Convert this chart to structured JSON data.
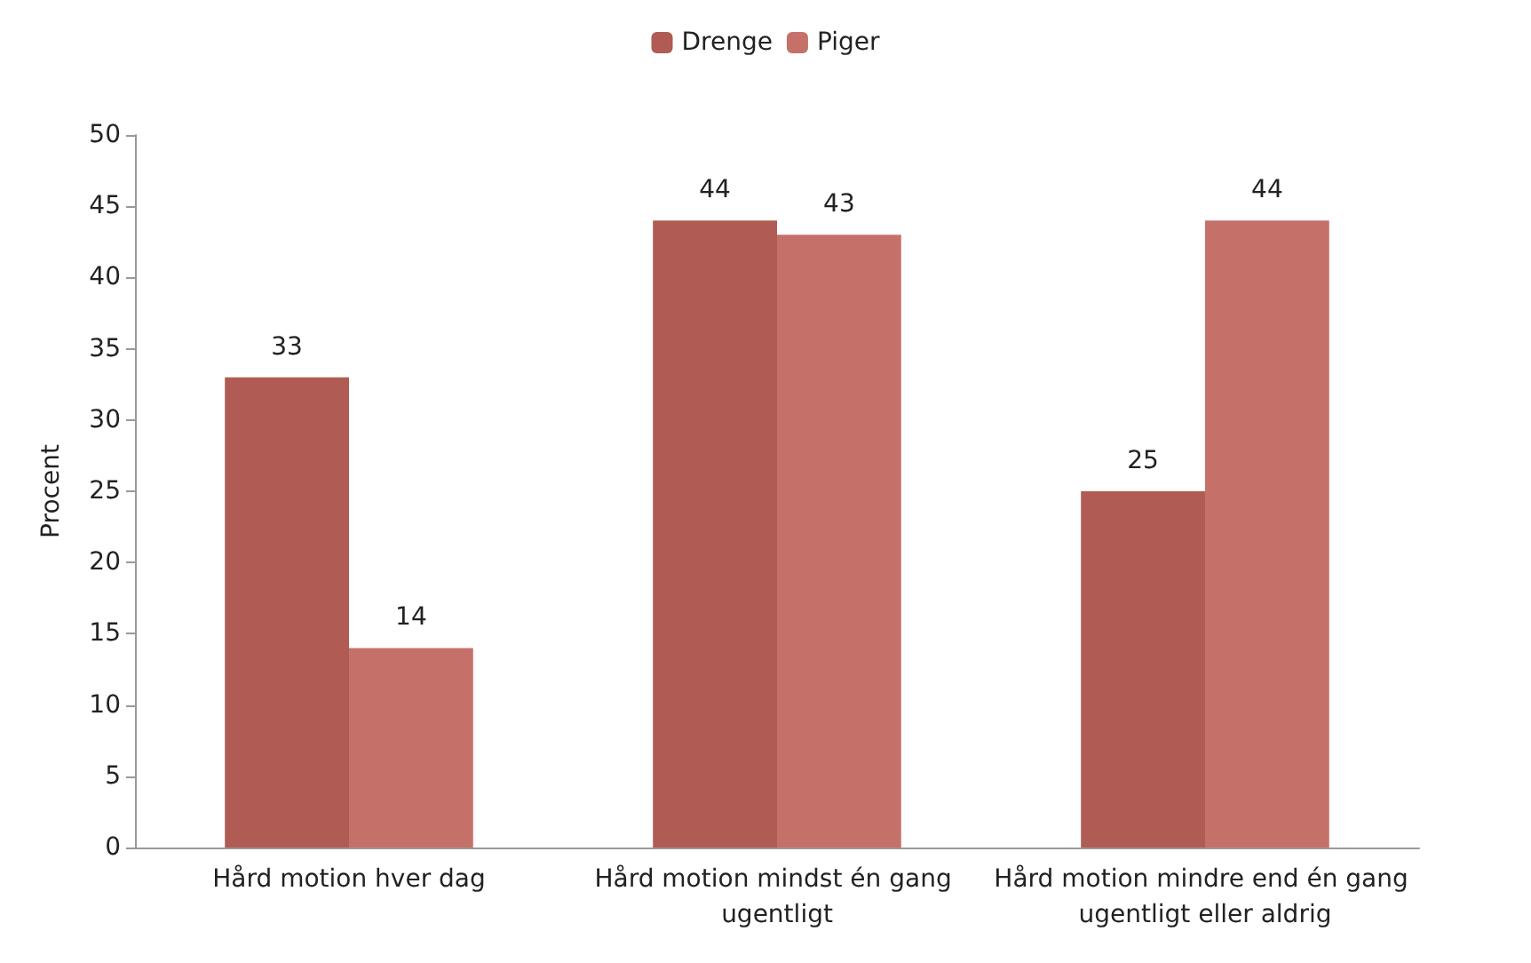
{
  "chart_data": {
    "type": "bar",
    "ylabel": "Procent",
    "categories": [
      "Hård motion hver dag",
      "Hård motion mindst én gang ugentligt",
      "Hård motion mindre end én gang ugentligt eller aldrig"
    ],
    "series": [
      {
        "name": "Drenge",
        "color": "#b05b53",
        "values": [
          33,
          44,
          25
        ]
      },
      {
        "name": "Piger",
        "color": "#c5716a",
        "values": [
          14,
          43,
          44
        ]
      }
    ],
    "ylim": [
      0,
      50
    ],
    "yticks": [
      0,
      5,
      10,
      15,
      20,
      25,
      30,
      35,
      40,
      45,
      50
    ],
    "grid": false,
    "legend": "top",
    "data_labels": true
  }
}
